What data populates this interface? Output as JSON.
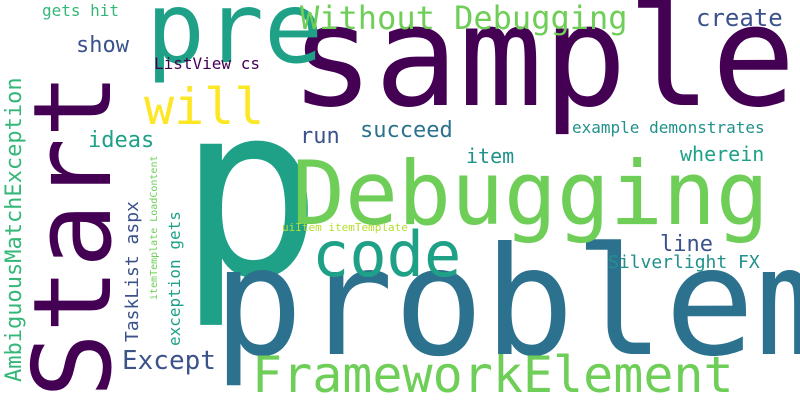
{
  "words": [
    {
      "key": "p",
      "text": "p",
      "color": "#1fa188"
    },
    {
      "key": "problem",
      "text": "problem",
      "color": "#2c728e"
    },
    {
      "key": "sample",
      "text": "sample",
      "color": "#440154"
    },
    {
      "key": "start",
      "text": "Start",
      "color": "#440154"
    },
    {
      "key": "debugging",
      "text": "Debugging",
      "color": "#6ece58"
    },
    {
      "key": "pre",
      "text": "pre",
      "color": "#1fa188"
    },
    {
      "key": "framework",
      "text": "FrameworkElement",
      "color": "#6ece58"
    },
    {
      "key": "code",
      "text": "code",
      "color": "#1fa188"
    },
    {
      "key": "without",
      "text": "Without Debugging",
      "color": "#6ece58"
    },
    {
      "key": "will",
      "text": "will",
      "color": "#fde725"
    },
    {
      "key": "create",
      "text": "create",
      "color": "#3b528b"
    },
    {
      "key": "show",
      "text": "show",
      "color": "#3b528b"
    },
    {
      "key": "listview",
      "text": "ListView cs",
      "color": "#440154"
    },
    {
      "key": "ideas",
      "text": "ideas",
      "color": "#1fa188"
    },
    {
      "key": "run",
      "text": "run",
      "color": "#3b528b"
    },
    {
      "key": "succeed",
      "text": "succeed",
      "color": "#2c728e"
    },
    {
      "key": "example",
      "text": "example demonstrates",
      "color": "#21918c"
    },
    {
      "key": "item",
      "text": "item",
      "color": "#21918c"
    },
    {
      "key": "wherein",
      "text": "wherein",
      "color": "#1fa188"
    },
    {
      "key": "line",
      "text": "line",
      "color": "#3b528b"
    },
    {
      "key": "silverlight",
      "text": "Silverlight FX",
      "color": "#21918c"
    },
    {
      "key": "except",
      "text": "Except",
      "color": "#3b528b"
    },
    {
      "key": "getshit",
      "text": "gets hit",
      "color": "#35b779"
    },
    {
      "key": "ambiguous",
      "text": "AmbiguousMatchException",
      "color": "#35b779"
    },
    {
      "key": "tasklist",
      "text": "TaskList aspx",
      "color": "#3b528b"
    },
    {
      "key": "exceptiongets",
      "text": "exception gets",
      "color": "#1fa188"
    },
    {
      "key": "itemtemplate",
      "text": "itemTemplate LoadContent",
      "color": "#6ece58"
    },
    {
      "key": "uiitem",
      "text": "uiItem itemTemplate",
      "color": "#b5de2b"
    }
  ]
}
